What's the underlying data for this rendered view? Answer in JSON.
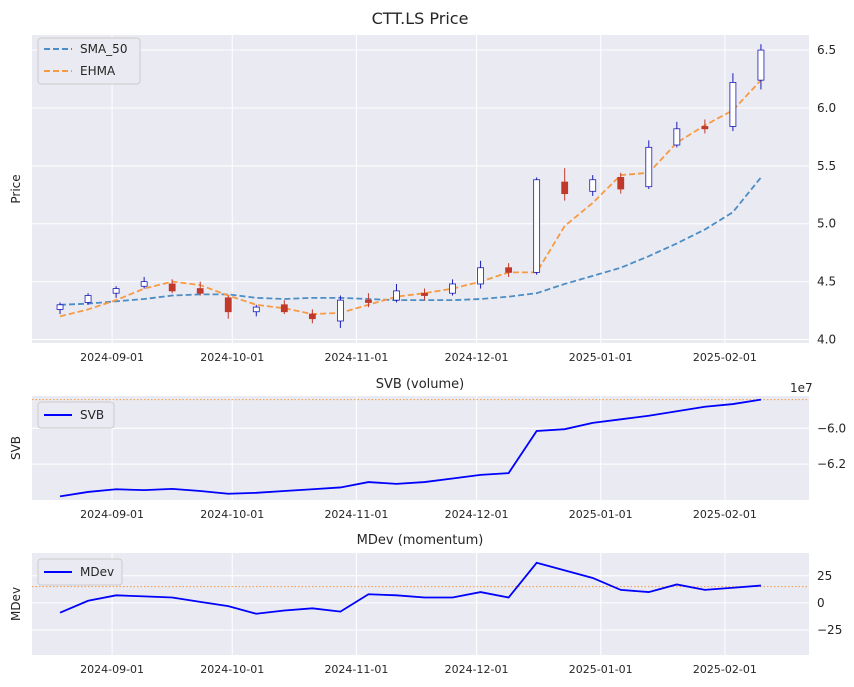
{
  "colors": {
    "axes_bg": "#eaeaf2",
    "grid": "#ffffff",
    "sma": "#4c8dc4",
    "ehma": "#f79a44",
    "up_candle": "#1c1cb8",
    "down_candle": "#c0392b",
    "svb": "#0000ff",
    "mdev": "#0000ff",
    "ref_line": "#f79a44"
  },
  "x_ticks": [
    "2024-09-01",
    "2024-10-01",
    "2024-11-01",
    "2024-12-01",
    "2025-01-01",
    "2025-02-01"
  ],
  "chart_data": [
    {
      "type": "line",
      "subtype": "candlestick",
      "title": "CTT.LS Price",
      "xlabel": "",
      "ylabel": "Price",
      "ylim": [
        3.97,
        6.63
      ],
      "y_ticks": [
        "4.0",
        "4.5",
        "5.0",
        "5.5",
        "6.0",
        "6.5"
      ],
      "y_tick_values": [
        4.0,
        4.5,
        5.0,
        5.5,
        6.0,
        6.5
      ],
      "legend_position": "top-left",
      "legend": [
        "SMA_50",
        "EHMA"
      ],
      "x": [
        "2024-08-19",
        "2024-08-26",
        "2024-09-02",
        "2024-09-09",
        "2024-09-16",
        "2024-09-23",
        "2024-09-30",
        "2024-10-07",
        "2024-10-14",
        "2024-10-21",
        "2024-10-28",
        "2024-11-04",
        "2024-11-11",
        "2024-11-18",
        "2024-11-25",
        "2024-12-02",
        "2024-12-09",
        "2024-12-16",
        "2024-12-23",
        "2024-12-30",
        "2025-01-06",
        "2025-01-13",
        "2025-01-20",
        "2025-01-27",
        "2025-02-03",
        "2025-02-10"
      ],
      "candles": [
        {
          "o": 4.26,
          "h": 4.32,
          "l": 4.22,
          "c": 4.3
        },
        {
          "o": 4.32,
          "h": 4.4,
          "l": 4.3,
          "c": 4.38
        },
        {
          "o": 4.4,
          "h": 4.46,
          "l": 4.36,
          "c": 4.44
        },
        {
          "o": 4.46,
          "h": 4.54,
          "l": 4.44,
          "c": 4.5
        },
        {
          "o": 4.48,
          "h": 4.52,
          "l": 4.4,
          "c": 4.42
        },
        {
          "o": 4.44,
          "h": 4.5,
          "l": 4.38,
          "c": 4.4
        },
        {
          "o": 4.36,
          "h": 4.38,
          "l": 4.18,
          "c": 4.24
        },
        {
          "o": 4.24,
          "h": 4.3,
          "l": 4.2,
          "c": 4.28
        },
        {
          "o": 4.3,
          "h": 4.34,
          "l": 4.22,
          "c": 4.24
        },
        {
          "o": 4.22,
          "h": 4.26,
          "l": 4.14,
          "c": 4.18
        },
        {
          "o": 4.16,
          "h": 4.38,
          "l": 4.1,
          "c": 4.34
        },
        {
          "o": 4.34,
          "h": 4.4,
          "l": 4.28,
          "c": 4.32
        },
        {
          "o": 4.34,
          "h": 4.48,
          "l": 4.32,
          "c": 4.42
        },
        {
          "o": 4.4,
          "h": 4.44,
          "l": 4.34,
          "c": 4.38
        },
        {
          "o": 4.4,
          "h": 4.52,
          "l": 4.38,
          "c": 4.48
        },
        {
          "o": 4.48,
          "h": 4.68,
          "l": 4.44,
          "c": 4.62
        },
        {
          "o": 4.62,
          "h": 4.66,
          "l": 4.54,
          "c": 4.58
        },
        {
          "o": 4.58,
          "h": 5.4,
          "l": 4.56,
          "c": 5.38
        },
        {
          "o": 5.36,
          "h": 5.48,
          "l": 5.2,
          "c": 5.26
        },
        {
          "o": 5.28,
          "h": 5.42,
          "l": 5.24,
          "c": 5.38
        },
        {
          "o": 5.4,
          "h": 5.44,
          "l": 5.26,
          "c": 5.3
        },
        {
          "o": 5.32,
          "h": 5.72,
          "l": 5.3,
          "c": 5.66
        },
        {
          "o": 5.68,
          "h": 5.88,
          "l": 5.66,
          "c": 5.82
        },
        {
          "o": 5.84,
          "h": 5.9,
          "l": 5.78,
          "c": 5.82
        },
        {
          "o": 5.84,
          "h": 6.3,
          "l": 5.8,
          "c": 6.22
        },
        {
          "o": 6.24,
          "h": 6.55,
          "l": 6.16,
          "c": 6.5
        }
      ],
      "series": [
        {
          "name": "SMA_50",
          "values": [
            4.3,
            4.31,
            4.33,
            4.35,
            4.38,
            4.39,
            4.39,
            4.36,
            4.35,
            4.36,
            4.36,
            4.35,
            4.34,
            4.34,
            4.34,
            4.35,
            4.37,
            4.4,
            4.48,
            4.55,
            4.62,
            4.72,
            4.83,
            4.95,
            5.1,
            5.4
          ]
        },
        {
          "name": "EHMA",
          "values": [
            4.2,
            4.26,
            4.34,
            4.44,
            4.5,
            4.47,
            4.38,
            4.3,
            4.27,
            4.22,
            4.23,
            4.3,
            4.37,
            4.4,
            4.44,
            4.5,
            4.58,
            4.58,
            4.98,
            5.18,
            5.42,
            5.44,
            5.7,
            5.85,
            5.98,
            6.24
          ]
        }
      ]
    },
    {
      "type": "line",
      "title": "SVB (volume)",
      "xlabel": "",
      "ylabel": "SVB",
      "offset_label": "1e7",
      "ylim": [
        -64000000,
        -58200000
      ],
      "y_ticks": [
        "−6.0",
        "−6.2"
      ],
      "y_tick_values": [
        -60000000,
        -62000000
      ],
      "reference_line": -58400000,
      "legend_position": "top-left",
      "legend": [
        "SVB"
      ],
      "x": [
        "2024-08-19",
        "2024-08-26",
        "2024-09-02",
        "2024-09-09",
        "2024-09-16",
        "2024-09-23",
        "2024-09-30",
        "2024-10-07",
        "2024-10-14",
        "2024-10-21",
        "2024-10-28",
        "2024-11-04",
        "2024-11-11",
        "2024-11-18",
        "2024-11-25",
        "2024-12-02",
        "2024-12-09",
        "2024-12-16",
        "2024-12-23",
        "2024-12-30",
        "2025-01-06",
        "2025-01-13",
        "2025-01-20",
        "2025-01-27",
        "2025-02-03",
        "2025-02-10"
      ],
      "series": [
        {
          "name": "SVB",
          "values": [
            -63800000,
            -63550000,
            -63400000,
            -63450000,
            -63380000,
            -63500000,
            -63650000,
            -63600000,
            -63500000,
            -63400000,
            -63300000,
            -63000000,
            -63100000,
            -63000000,
            -62800000,
            -62600000,
            -62500000,
            -60150000,
            -60050000,
            -59700000,
            -59500000,
            -59300000,
            -59050000,
            -58800000,
            -58650000,
            -58400000
          ]
        }
      ]
    },
    {
      "type": "line",
      "title": "MDev (momentum)",
      "xlabel": "",
      "ylabel": "MDev",
      "ylim": [
        -48,
        46
      ],
      "y_ticks": [
        "25",
        "0",
        "−25"
      ],
      "y_tick_values": [
        25,
        0,
        -25
      ],
      "reference_line": 15,
      "legend_position": "top-left",
      "legend": [
        "MDev"
      ],
      "x": [
        "2024-08-19",
        "2024-08-26",
        "2024-09-02",
        "2024-09-09",
        "2024-09-16",
        "2024-09-23",
        "2024-09-30",
        "2024-10-07",
        "2024-10-14",
        "2024-10-21",
        "2024-10-28",
        "2024-11-04",
        "2024-11-11",
        "2024-11-18",
        "2024-11-25",
        "2024-12-02",
        "2024-12-09",
        "2024-12-16",
        "2024-12-23",
        "2024-12-30",
        "2025-01-06",
        "2025-01-13",
        "2025-01-20",
        "2025-01-27",
        "2025-02-03",
        "2025-02-10"
      ],
      "series": [
        {
          "name": "MDev",
          "values": [
            -9,
            2,
            7,
            6,
            5,
            1,
            -3,
            -10,
            -7,
            -5,
            -8,
            8,
            7,
            5,
            5,
            10,
            5,
            37,
            30,
            23,
            12,
            10,
            17,
            12,
            14,
            16
          ]
        }
      ]
    }
  ]
}
